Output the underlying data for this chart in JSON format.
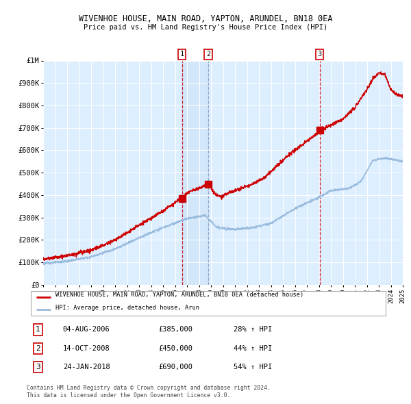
{
  "title": "WIVENHOE HOUSE, MAIN ROAD, YAPTON, ARUNDEL, BN18 0EA",
  "subtitle": "Price paid vs. HM Land Registry's House Price Index (HPI)",
  "ylim": [
    0,
    1000000
  ],
  "yticks": [
    0,
    100000,
    200000,
    300000,
    400000,
    500000,
    600000,
    700000,
    800000,
    900000,
    1000000
  ],
  "ytick_labels": [
    "£0",
    "£100K",
    "£200K",
    "£300K",
    "£400K",
    "£500K",
    "£600K",
    "£700K",
    "£800K",
    "£900K",
    "£1M"
  ],
  "x_start_year": 1995,
  "x_end_year": 2025,
  "hpi_color": "#99bbdd",
  "price_color": "#cc0000",
  "background_color": "#ddeeff",
  "sale1_date": 2006.58,
  "sale1_price": 385000,
  "sale2_date": 2008.78,
  "sale2_price": 450000,
  "sale3_date": 2018.06,
  "sale3_price": 690000,
  "legend_house": "WIVENHOE HOUSE, MAIN ROAD, YAPTON, ARUNDEL, BN18 0EA (detached house)",
  "legend_hpi": "HPI: Average price, detached house, Arun",
  "table_rows": [
    [
      "1",
      "04-AUG-2006",
      "£385,000",
      "28% ↑ HPI"
    ],
    [
      "2",
      "14-OCT-2008",
      "£450,000",
      "44% ↑ HPI"
    ],
    [
      "3",
      "24-JAN-2018",
      "£690,000",
      "54% ↑ HPI"
    ]
  ],
  "footnote1": "Contains HM Land Registry data © Crown copyright and database right 2024.",
  "footnote2": "This data is licensed under the Open Government Licence v3.0."
}
